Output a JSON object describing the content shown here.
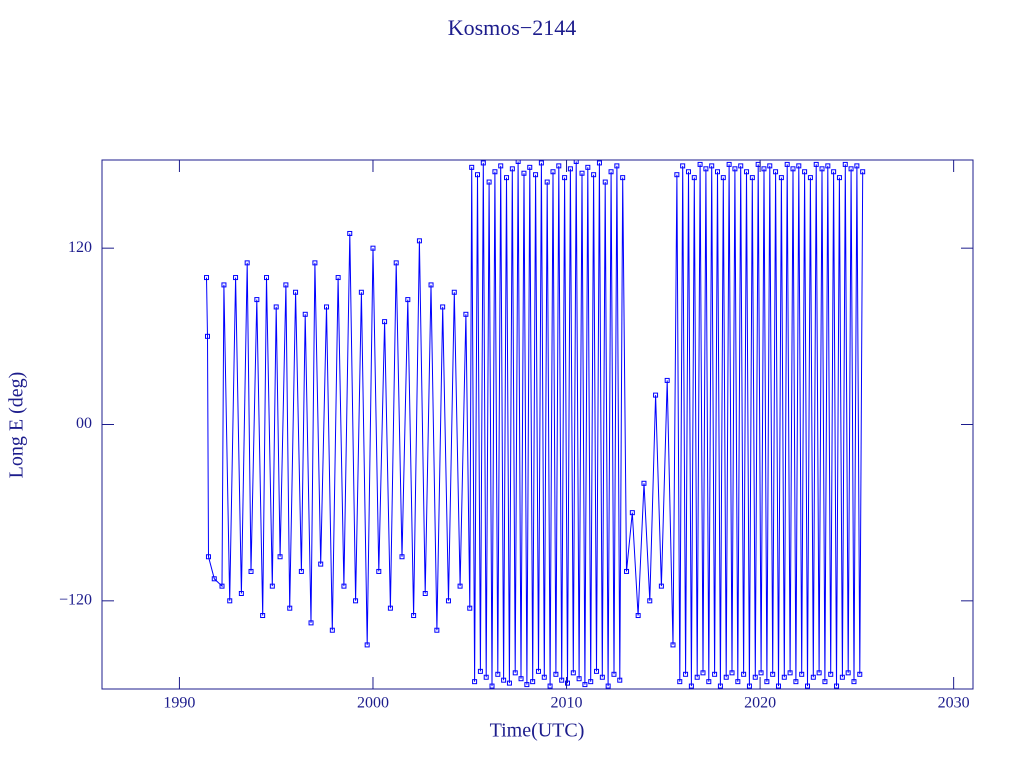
{
  "chart_data": {
    "type": "line",
    "title": "Kosmos−2144",
    "x_label": "Time(UTC)",
    "y_label": "Long E (deg)",
    "color": "#0000ff",
    "markers": true,
    "xlim": [
      1986,
      2031
    ],
    "xticks": [
      1990,
      2000,
      2010,
      2020,
      2030
    ],
    "ylim": [
      -180,
      180
    ],
    "yticks": [
      {
        "value": -120,
        "label": "−120"
      },
      {
        "value": 0,
        "label": "00"
      },
      120
    ],
    "x": [
      1991.4,
      1991.45,
      1991.5,
      1991.8,
      1992.2,
      1992.3,
      1992.6,
      1992.9,
      1993.2,
      1993.5,
      1993.7,
      1994.0,
      1994.3,
      1994.5,
      1994.8,
      1995.0,
      1995.2,
      1995.5,
      1995.7,
      1996.0,
      1996.3,
      1996.5,
      1996.8,
      1997.0,
      1997.3,
      1997.6,
      1997.9,
      1998.2,
      1998.5,
      1998.8,
      1999.1,
      1999.4,
      1999.7,
      2000.0,
      2000.3,
      2000.6,
      2000.9,
      2001.2,
      2001.5,
      2001.8,
      2002.1,
      2002.4,
      2002.7,
      2003.0,
      2003.3,
      2003.6,
      2003.9,
      2004.2,
      2004.5,
      2004.8,
      2005.0,
      2005.1,
      2005.25,
      2005.4,
      2005.55,
      2005.7,
      2005.85,
      2006,
      2006.15,
      2006.3,
      2006.45,
      2006.6,
      2006.75,
      2006.9,
      2007.05,
      2007.2,
      2007.35,
      2007.5,
      2007.65,
      2007.8,
      2007.95,
      2008.1,
      2008.25,
      2008.4,
      2008.55,
      2008.7,
      2008.85,
      2009,
      2009.15,
      2009.3,
      2009.45,
      2009.6,
      2009.75,
      2009.9,
      2010.05,
      2010.2,
      2010.35,
      2010.5,
      2010.65,
      2010.8,
      2010.95,
      2011.1,
      2011.25,
      2011.4,
      2011.55,
      2011.7,
      2011.85,
      2012,
      2012.15,
      2012.3,
      2012.45,
      2012.6,
      2012.75,
      2012.9,
      2013.1,
      2013.4,
      2013.7,
      2014.0,
      2014.3,
      2014.6,
      2014.9,
      2015.2,
      2015.5,
      2015.7,
      2015.85,
      2016,
      2016.15,
      2016.3,
      2016.45,
      2016.6,
      2016.75,
      2016.9,
      2017.05,
      2017.2,
      2017.35,
      2017.5,
      2017.65,
      2017.8,
      2017.95,
      2018.1,
      2018.25,
      2018.4,
      2018.55,
      2018.7,
      2018.85,
      2019,
      2019.15,
      2019.3,
      2019.45,
      2019.6,
      2019.75,
      2019.9,
      2020.05,
      2020.2,
      2020.35,
      2020.5,
      2020.65,
      2020.8,
      2020.95,
      2021.1,
      2021.25,
      2021.4,
      2021.55,
      2021.7,
      2021.85,
      2022,
      2022.15,
      2022.3,
      2022.45,
      2022.6,
      2022.75,
      2022.9,
      2023.05,
      2023.2,
      2023.35,
      2023.5,
      2023.65,
      2023.8,
      2023.95,
      2024.1,
      2024.25,
      2024.4,
      2024.55,
      2024.7,
      2024.85,
      2025,
      2025.15,
      2025.3
    ],
    "values": [
      100,
      60,
      -90,
      -105,
      -110,
      95,
      -120,
      100,
      -115,
      110,
      -100,
      85,
      -130,
      100,
      -110,
      80,
      -90,
      95,
      -125,
      90,
      -100,
      75,
      -135,
      110,
      -95,
      80,
      -140,
      100,
      -110,
      130,
      -120,
      90,
      -150,
      120,
      -100,
      70,
      -125,
      110,
      -90,
      85,
      -130,
      125,
      -115,
      95,
      -140,
      80,
      -120,
      90,
      -110,
      75,
      -125,
      175,
      -175,
      170,
      -168,
      178,
      -172,
      165,
      -178,
      172,
      -170,
      176,
      -174,
      168,
      -176,
      174,
      -169,
      179,
      -173,
      171,
      -177,
      175,
      -175,
      170,
      -168,
      178,
      -172,
      165,
      -178,
      172,
      -170,
      176,
      -174,
      168,
      -176,
      174,
      -169,
      179,
      -173,
      171,
      -177,
      175,
      -175,
      170,
      -168,
      178,
      -172,
      165,
      -178,
      172,
      -170,
      176,
      -174,
      168,
      -100,
      -60,
      -130,
      -40,
      -120,
      20,
      -110,
      30,
      -150,
      170,
      -175,
      176,
      -170,
      172,
      -178,
      168,
      -172,
      177,
      -169,
      174,
      -175,
      176,
      -170,
      172,
      -178,
      168,
      -172,
      177,
      -169,
      174,
      -175,
      176,
      -170,
      172,
      -178,
      168,
      -172,
      177,
      -169,
      174,
      -175,
      176,
      -170,
      172,
      -178,
      168,
      -172,
      177,
      -169,
      174,
      -175,
      176,
      -170,
      172,
      -178,
      168,
      -172,
      177,
      -169,
      174,
      -175,
      176,
      -170,
      172,
      -178,
      168,
      -172,
      177,
      -169,
      174,
      -175,
      176,
      -170,
      172
    ]
  }
}
